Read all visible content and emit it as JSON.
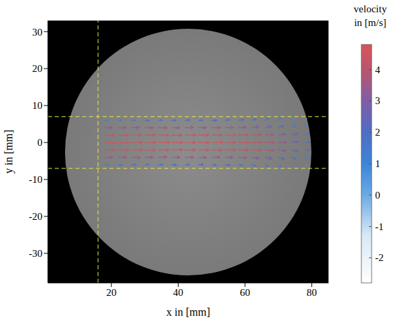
{
  "chart_data": {
    "type": "quiver",
    "x_label": "x in [mm]",
    "y_label": "y in [mm]",
    "xlim": [
      1,
      85
    ],
    "ylim": [
      -38,
      33
    ],
    "xticks": [
      20,
      40,
      60,
      80
    ],
    "yticks": [
      -30,
      -20,
      -10,
      0,
      10,
      20,
      30
    ],
    "vector_field": {
      "x": [
        18,
        22,
        26,
        30,
        34,
        38,
        42,
        46,
        50,
        54,
        58,
        62,
        66,
        70,
        74,
        78
      ],
      "y": [
        6,
        4,
        2,
        0,
        -2,
        -4,
        -6
      ],
      "u": [
        [
          1.2,
          1.5,
          1.6,
          1.8,
          1.7,
          1.9,
          2.0,
          1.8,
          2.1,
          1.9,
          2.2,
          1.8,
          1.5,
          1.2,
          0.8,
          0.6
        ],
        [
          3.2,
          3.4,
          3.3,
          3.5,
          3.6,
          3.4,
          3.5,
          3.3,
          3.6,
          3.4,
          3.2,
          3.0,
          2.6,
          2.2,
          1.6,
          1.0
        ],
        [
          4.2,
          4.4,
          4.3,
          4.5,
          4.4,
          4.3,
          4.6,
          4.4,
          4.3,
          4.5,
          4.2,
          4.0,
          3.6,
          3.0,
          2.4,
          1.6
        ],
        [
          4.6,
          4.7,
          4.5,
          4.6,
          4.8,
          4.7,
          4.5,
          4.6,
          4.7,
          4.4,
          4.5,
          4.3,
          3.9,
          3.4,
          2.6,
          1.8
        ],
        [
          4.4,
          4.5,
          4.6,
          4.4,
          4.5,
          4.6,
          4.4,
          4.5,
          4.3,
          4.4,
          4.2,
          4.1,
          3.7,
          3.1,
          2.5,
          1.7
        ],
        [
          3.3,
          3.5,
          3.6,
          3.4,
          3.7,
          3.5,
          3.6,
          3.4,
          3.5,
          3.3,
          3.4,
          3.1,
          2.8,
          2.4,
          1.8,
          1.2
        ],
        [
          1.4,
          1.6,
          1.8,
          1.7,
          1.9,
          2.0,
          1.8,
          2.1,
          1.9,
          2.0,
          1.7,
          1.6,
          1.4,
          1.1,
          0.9,
          0.7
        ]
      ],
      "v": [
        [
          0,
          0.1,
          0,
          -0.1,
          0.1,
          0,
          0.1,
          0,
          -0.1,
          0.2,
          0.3,
          0.5,
          0.8,
          1.0,
          0.9,
          0.6
        ],
        [
          0,
          0,
          0.1,
          0,
          -0.1,
          0,
          0.1,
          0,
          0,
          0.1,
          0.2,
          0.4,
          0.6,
          0.8,
          0.9,
          0.7
        ],
        [
          0,
          0,
          0,
          0.1,
          0,
          -0.1,
          0,
          0.1,
          0,
          0,
          0.1,
          0.2,
          0.3,
          0.5,
          0.6,
          0.5
        ],
        [
          0,
          0,
          0,
          0,
          0.1,
          0,
          0,
          -0.1,
          0,
          0,
          0,
          0.1,
          0.1,
          0.2,
          0.3,
          0.2
        ],
        [
          0,
          0,
          0,
          -0.1,
          0,
          0.1,
          0,
          0,
          -0.1,
          0,
          -0.1,
          -0.2,
          -0.3,
          -0.4,
          -0.5,
          -0.4
        ],
        [
          0,
          0,
          -0.1,
          0,
          0.1,
          0,
          0,
          -0.1,
          0,
          -0.1,
          -0.2,
          -0.4,
          -0.6,
          -0.7,
          -0.8,
          -0.6
        ],
        [
          0,
          -0.1,
          0,
          0.1,
          0,
          -0.1,
          0,
          0,
          -0.2,
          -0.2,
          -0.3,
          -0.5,
          -0.7,
          -0.9,
          -0.8,
          -0.5
        ]
      ]
    },
    "reference_lines": {
      "x": [
        16
      ],
      "y": [
        7,
        -7
      ],
      "color": "#e6e64a",
      "line_style": "dashed"
    },
    "colorbar": {
      "title": "velocity in [m/s]",
      "range": [
        -2.8,
        4.8
      ],
      "ticks": [
        -2,
        -1,
        0,
        1,
        2,
        3,
        4
      ]
    }
  }
}
